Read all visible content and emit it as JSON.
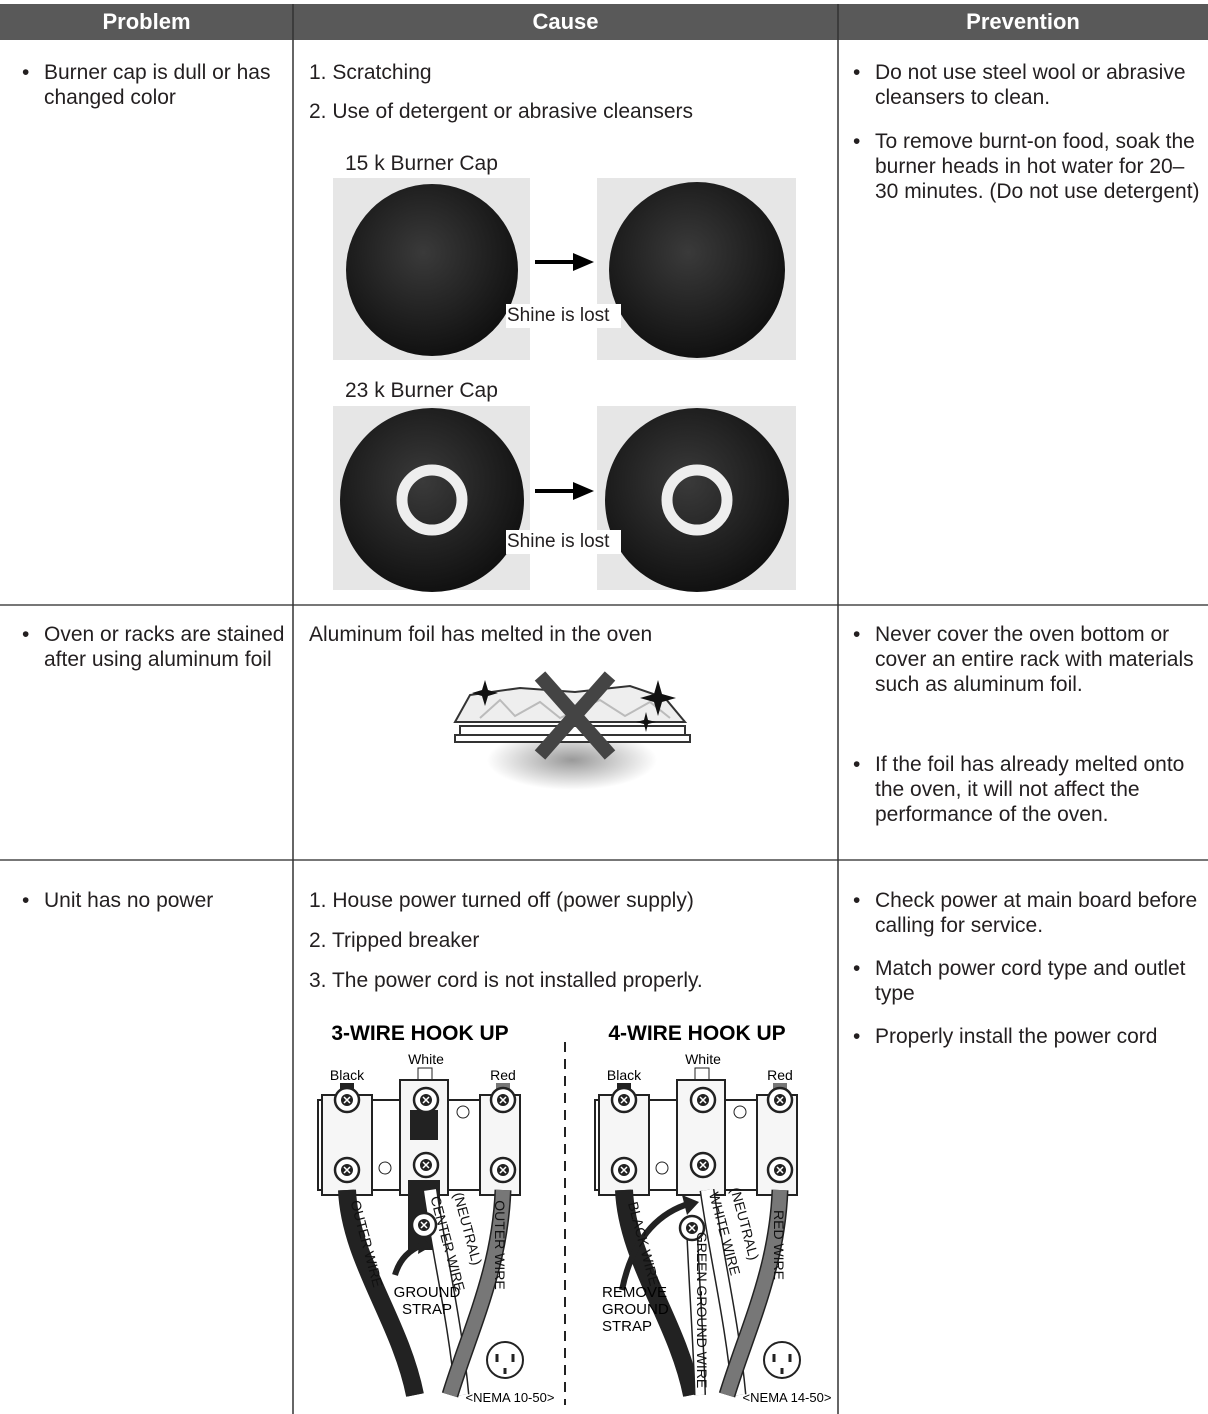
{
  "table": {
    "header": [
      "Problem",
      "Cause",
      "Prevention"
    ],
    "rows": [
      {
        "problem": "Burner cap is dull or has changed color",
        "cause": [
          "1. Scratching",
          "2. Use of detergent or abrasive cleansers"
        ],
        "figures": [
          {
            "caption": "15 k Burner Cap",
            "label": "Shine is lost"
          },
          {
            "caption": "23 k Burner Cap",
            "label": "Shine is lost"
          }
        ],
        "prevention": [
          "Do not use steel wool or abrasive cleansers to clean.",
          "To remove burnt-on food, soak the burner heads in hot water for 20–30 minutes. (Do not use detergent)"
        ]
      },
      {
        "problem": "Oven or racks are stained after using aluminum foil",
        "cause": [
          "Aluminum foil has melted in the oven"
        ],
        "prevention": [
          "Never cover the oven bottom or cover an entire rack with materials such as aluminum foil.",
          "If the foil has already melted onto the oven, it will not affect the performance of the oven."
        ]
      },
      {
        "problem": "Unit has no power",
        "cause": [
          "1. House power turned off (power supply)",
          "2. Tripped breaker",
          "3. The power cord is not installed properly."
        ],
        "diagram": [
          {
            "title": "3-WIRE HOOK UP",
            "terminals": [
              "Black",
              "White",
              "Red"
            ],
            "wires": [
              "OUTER WIRE",
              "CENTER WIRE",
              "(NEUTRAL)",
              "OUTER WIRE"
            ],
            "strap": [
              "GROUND",
              "STRAP"
            ],
            "outlet": "<NEMA 10-50>"
          },
          {
            "title": "4-WIRE HOOK UP",
            "terminals": [
              "Black",
              "White",
              "Red"
            ],
            "wires": [
              "BLACK WIRE",
              "WHITE WIRE",
              "(NEUTRAL)",
              "RED WIRE",
              "GREEN GROUND WIRE"
            ],
            "strap": [
              "REMOVE",
              "GROUND",
              "STRAP"
            ],
            "outlet": "<NEMA 14-50>"
          }
        ],
        "prevention": [
          "Check power at main board before calling for service.",
          "Match power cord type and outlet type",
          "Properly install the power cord"
        ]
      }
    ]
  }
}
